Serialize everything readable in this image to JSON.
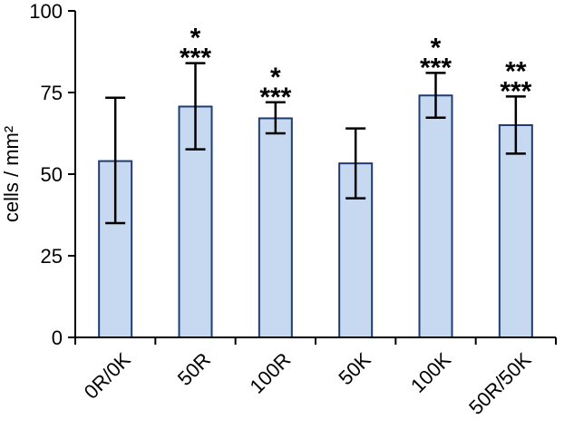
{
  "chart_data": {
    "type": "bar",
    "categories": [
      "0R/0K",
      "50R",
      "100R",
      "50K",
      "100K",
      "50R/50K"
    ],
    "values": [
      54,
      70.7,
      67.1,
      53.3,
      74.1,
      65
    ],
    "error_upper": [
      73.4,
      84,
      72,
      64,
      81,
      73.8
    ],
    "error_lower": [
      35,
      57.6,
      62.5,
      42.6,
      67.3,
      56.3
    ],
    "annotations": [
      {
        "top": "",
        "bottom": ""
      },
      {
        "top": "*",
        "bottom": "***"
      },
      {
        "top": "*",
        "bottom": "***"
      },
      {
        "top": "",
        "bottom": ""
      },
      {
        "top": "*",
        "bottom": "***"
      },
      {
        "top": "**",
        "bottom": "***"
      }
    ],
    "ylabel": "cells / mm²",
    "xlabel": "",
    "title": "",
    "ylim": [
      0,
      100
    ],
    "yticks": [
      0,
      25,
      50,
      75,
      100
    ],
    "colors": {
      "bar_fill": "#c6d9f1",
      "bar_stroke": "#1f3d73"
    },
    "grid": false
  }
}
